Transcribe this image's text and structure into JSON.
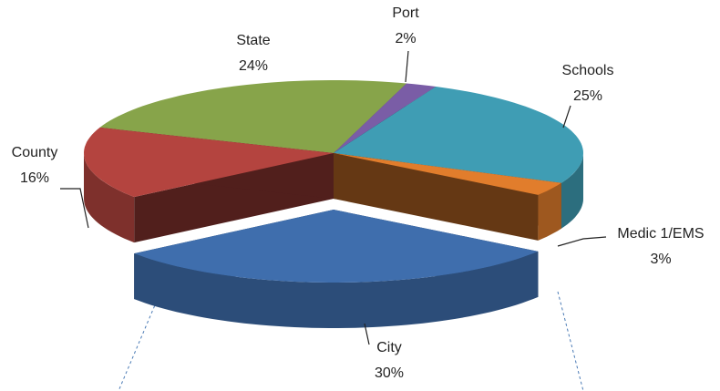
{
  "chart_data": {
    "type": "pie3d",
    "categories": [
      "Port",
      "Schools",
      "Medic 1/EMS",
      "City",
      "County",
      "State"
    ],
    "values": [
      2,
      25,
      3,
      30,
      16,
      24
    ],
    "value_labels": [
      "2%",
      "25%",
      "3%",
      "30%",
      "16%",
      "24%"
    ],
    "colors": [
      "#7a5da6",
      "#3f9db4",
      "#e17d2c",
      "#3f6ead",
      "#b4443f",
      "#87a44a"
    ]
  }
}
